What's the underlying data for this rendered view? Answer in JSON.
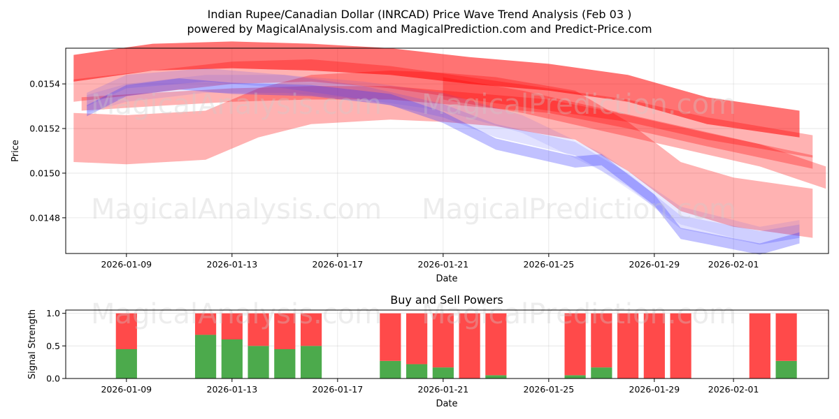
{
  "chart_data": [
    {
      "type": "area",
      "title": "Indian Rupee/Canadian Dollar (INRCAD) Price Wave Trend Analysis (Feb 03 )",
      "subtitle": "powered by MagicalAnalysis.com and MagicalPrediction.com and Predict-Price.com",
      "xlabel": "Date",
      "ylabel": "Price",
      "grid": true,
      "ylim": [
        0.01464,
        0.01556
      ],
      "yticks": [
        "0.0148",
        "0.0150",
        "0.0152",
        "0.0154"
      ],
      "ytick_values": [
        0.0148,
        0.015,
        0.0152,
        0.0154
      ],
      "xticks": [
        "2026-01-09",
        "2026-01-13",
        "2026-01-17",
        "2026-01-21",
        "2026-01-25",
        "2026-01-29",
        "2026-02-01"
      ],
      "xtick_days": [
        9,
        13,
        17,
        21,
        25,
        29,
        32
      ],
      "xlim_days": [
        6.7,
        35.6
      ],
      "series": [
        {
          "name": "red-band-1",
          "color": "#ff0000",
          "opacity": 0.55,
          "days": [
            7,
            10,
            13,
            16,
            19,
            22,
            25,
            28,
            31,
            34.5
          ],
          "values": [
            0.01547,
            0.01552,
            0.01553,
            0.01552,
            0.0155,
            0.01546,
            0.01543,
            0.01538,
            0.01528,
            0.01522
          ],
          "width": 0.00012
        },
        {
          "name": "red-band-2",
          "color": "#ff0000",
          "opacity": 0.3,
          "days": [
            7,
            10,
            13,
            16,
            19,
            22,
            25,
            28,
            31,
            35
          ],
          "values": [
            0.01537,
            0.01541,
            0.01545,
            0.01546,
            0.01543,
            0.01538,
            0.01533,
            0.01528,
            0.0152,
            0.01512
          ],
          "width": 0.0001
        },
        {
          "name": "red-band-3",
          "color": "#ff0000",
          "opacity": 0.3,
          "days": [
            7.3,
            10,
            13,
            16,
            19,
            22,
            25,
            28,
            31,
            35
          ],
          "values": [
            0.01531,
            0.01533,
            0.01535,
            0.01536,
            0.01536,
            0.01533,
            0.0153,
            0.01523,
            0.01515,
            0.01505
          ],
          "width": 6e-05
        },
        {
          "name": "red-band-4",
          "color": "#ff0000",
          "opacity": 0.3,
          "days": [
            7,
            9,
            12,
            14,
            16,
            19,
            21,
            23,
            26,
            28,
            30,
            32,
            35
          ],
          "values": [
            0.01516,
            0.01515,
            0.01517,
            0.01527,
            0.01533,
            0.01535,
            0.01534,
            0.01532,
            0.01526,
            0.01512,
            0.01494,
            0.01487,
            0.01482
          ],
          "width": 0.00022
        },
        {
          "name": "red-band-5",
          "color": "#ff0000",
          "opacity": 0.3,
          "days": [
            21,
            24,
            27,
            30,
            33,
            35.5
          ],
          "values": [
            0.01538,
            0.01532,
            0.01524,
            0.01516,
            0.01508,
            0.01498
          ],
          "width": 0.0001
        },
        {
          "name": "blue-band-1",
          "color": "#3333ff",
          "opacity": 0.3,
          "days": [
            7.5,
            9,
            11,
            13,
            16,
            19,
            21,
            23,
            26,
            27,
            29,
            30,
            33,
            34.5
          ],
          "values": [
            0.01528,
            0.01537,
            0.0154,
            0.01538,
            0.01537,
            0.01533,
            0.01525,
            0.01513,
            0.01505,
            0.01506,
            0.01488,
            0.01473,
            0.01466,
            0.01471
          ],
          "width": 5e-05
        },
        {
          "name": "blue-band-2",
          "color": "#3333ff",
          "opacity": 0.15,
          "days": [
            7.5,
            9,
            12,
            15,
            18,
            21,
            23,
            26,
            28,
            30,
            33,
            34.5
          ],
          "values": [
            0.01533,
            0.01541,
            0.01544,
            0.01541,
            0.01536,
            0.01528,
            0.01519,
            0.01511,
            0.01497,
            0.01478,
            0.01471,
            0.01474
          ],
          "width": 6e-05
        },
        {
          "name": "blue-band-3",
          "color": "#3333ff",
          "opacity": 0.1,
          "days": [
            7.5,
            9,
            12,
            15,
            18,
            21,
            24,
            27,
            30,
            33,
            34.5
          ],
          "values": [
            0.01531,
            0.01536,
            0.0154,
            0.0154,
            0.01537,
            0.01532,
            0.01522,
            0.01505,
            0.01481,
            0.01472,
            0.01475
          ],
          "width": 8e-05
        }
      ]
    },
    {
      "type": "bar",
      "title": "Buy and Sell Powers",
      "xlabel": "Date",
      "ylabel": "Signal Strength",
      "grid": true,
      "ylim": [
        0,
        1.05
      ],
      "yticks": [
        "0.0",
        "0.5",
        "1.0"
      ],
      "ytick_values": [
        0,
        0.5,
        1.0
      ],
      "xticks": [
        "2026-01-09",
        "2026-01-13",
        "2026-01-17",
        "2026-01-21",
        "2026-01-25",
        "2026-01-29",
        "2026-02-01"
      ],
      "xtick_days": [
        9,
        13,
        17,
        21,
        25,
        29,
        32
      ],
      "xlim_days": [
        6.7,
        35.6
      ],
      "colors": {
        "buy": "#4caa4c",
        "sell": "#ff4a4a"
      },
      "days": [
        9,
        12,
        13,
        14,
        15,
        16,
        19,
        20,
        21,
        22,
        23,
        26,
        27,
        28,
        29,
        30,
        33,
        34
      ],
      "buy": [
        0.45,
        0.67,
        0.6,
        0.5,
        0.45,
        0.5,
        0.27,
        0.22,
        0.17,
        0.0,
        0.05,
        0.05,
        0.17,
        0.0,
        0.0,
        0.0,
        0.0,
        0.27
      ],
      "sell": [
        0.55,
        0.33,
        0.4,
        0.5,
        0.55,
        0.5,
        0.73,
        0.78,
        0.83,
        1.0,
        0.95,
        0.95,
        0.83,
        1.0,
        1.0,
        1.0,
        1.0,
        0.73
      ]
    }
  ],
  "watermarks": {
    "analysis": "MagicalAnalysis.com",
    "prediction": "MagicalPrediction.com"
  }
}
